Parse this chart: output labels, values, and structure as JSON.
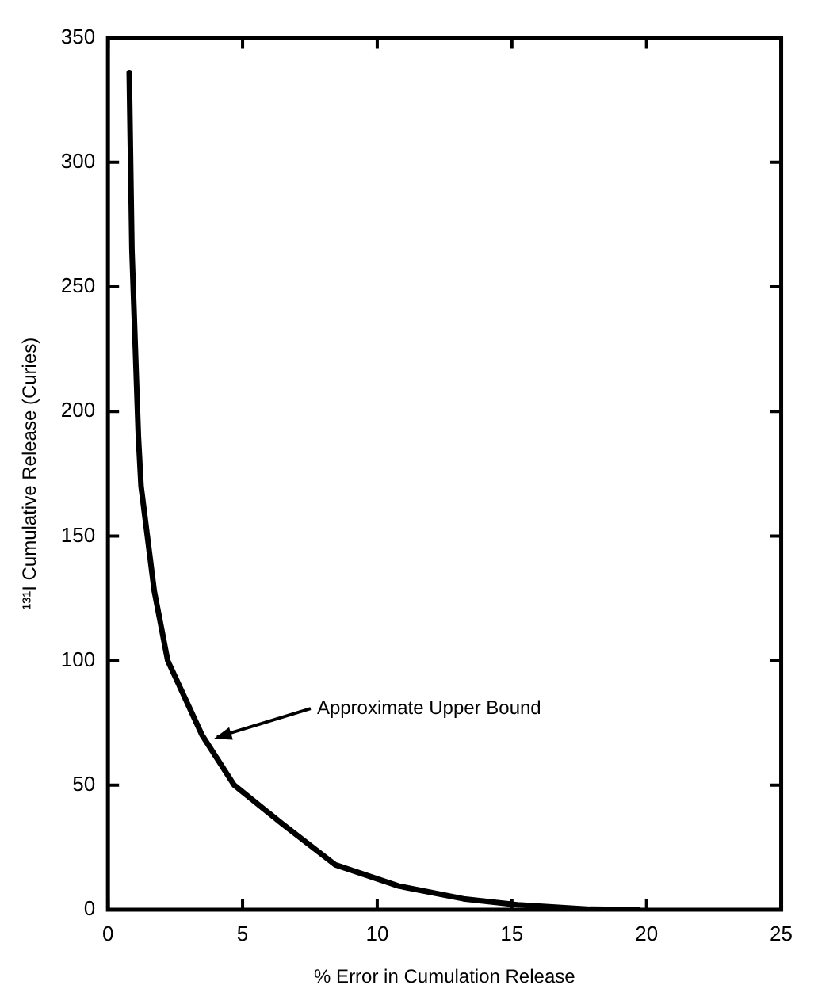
{
  "chart_data": {
    "type": "line",
    "xlabel": "% Error in Cumulation Release",
    "ylabel": "¹³¹I Cumulative Release (Curies)",
    "xlim": [
      0,
      25
    ],
    "xticks": [
      0,
      5,
      10,
      15,
      20,
      25
    ],
    "ylim": [
      0,
      350
    ],
    "yticks": [
      0,
      50,
      100,
      150,
      200,
      250,
      300,
      350
    ],
    "grid": false,
    "legend": false,
    "marker": "none",
    "line_style": "solid",
    "series": [
      {
        "color": "#000000",
        "x": [
          0.79,
          0.89,
          1.13,
          1.23,
          1.72,
          2.22,
          3.5,
          4.69,
          6.47,
          8.45,
          10.8,
          13.2,
          15.2,
          17.9,
          19.7
        ],
        "values": [
          336,
          265,
          190,
          170,
          128,
          100,
          70,
          50,
          34.5,
          18,
          9.5,
          4.4,
          2,
          0.2,
          0
        ]
      }
    ],
    "annotations": [
      {
        "text": "Approximate Upper Bound",
        "x": 3.7,
        "y": 68
      }
    ]
  }
}
